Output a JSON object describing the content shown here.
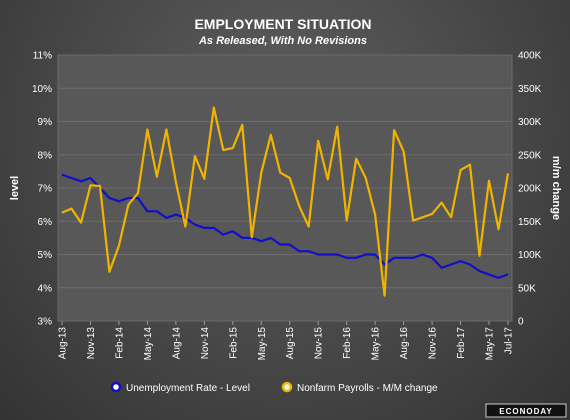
{
  "chart_data": {
    "type": "line",
    "title": "EMPLOYMENT SITUATION",
    "subtitle": "As Released, With No Revisions",
    "ylabel_left": "level",
    "ylabel_right": "m/m change",
    "ylim_left": [
      3,
      11
    ],
    "ylim_right": [
      0,
      400
    ],
    "yticks_left": [
      "3%",
      "4%",
      "5%",
      "6%",
      "7%",
      "8%",
      "9%",
      "10%",
      "11%"
    ],
    "yticks_right": [
      "0",
      "50K",
      "100K",
      "150K",
      "200K",
      "250K",
      "300K",
      "350K",
      "400K"
    ],
    "xticks": [
      "Aug-13",
      "Nov-13",
      "Feb-14",
      "May-14",
      "Aug-14",
      "Nov-14",
      "Feb-15",
      "May-15",
      "Aug-15",
      "Nov-15",
      "Feb-16",
      "May-16",
      "Aug-16",
      "Nov-16",
      "Feb-17",
      "May-17",
      "Jul-17"
    ],
    "x": [
      "Aug-13",
      "Sep-13",
      "Oct-13",
      "Nov-13",
      "Dec-13",
      "Jan-14",
      "Feb-14",
      "Mar-14",
      "Apr-14",
      "May-14",
      "Jun-14",
      "Jul-14",
      "Aug-14",
      "Sep-14",
      "Oct-14",
      "Nov-14",
      "Dec-14",
      "Jan-15",
      "Feb-15",
      "Mar-15",
      "Apr-15",
      "May-15",
      "Jun-15",
      "Jul-15",
      "Aug-15",
      "Sep-15",
      "Oct-15",
      "Nov-15",
      "Dec-15",
      "Jan-16",
      "Feb-16",
      "Mar-16",
      "Apr-16",
      "May-16",
      "Jun-16",
      "Jul-16",
      "Aug-16",
      "Sep-16",
      "Oct-16",
      "Nov-16",
      "Dec-16",
      "Jan-17",
      "Feb-17",
      "Mar-17",
      "Apr-17",
      "May-17",
      "Jun-17",
      "Jul-17"
    ],
    "series": [
      {
        "name": "Unemployment Rate - Level",
        "color": "#1010c8",
        "axis": "left",
        "values": [
          7.4,
          7.3,
          7.2,
          7.3,
          7.0,
          6.7,
          6.6,
          6.7,
          6.7,
          6.3,
          6.3,
          6.1,
          6.2,
          6.1,
          5.9,
          5.8,
          5.8,
          5.6,
          5.7,
          5.5,
          5.5,
          5.4,
          5.5,
          5.3,
          5.3,
          5.1,
          5.1,
          5.0,
          5.0,
          5.0,
          4.9,
          4.9,
          5.0,
          5.0,
          4.7,
          4.9,
          4.9,
          4.9,
          5.0,
          4.9,
          4.6,
          4.7,
          4.8,
          4.7,
          4.5,
          4.4,
          4.3,
          4.4
        ]
      },
      {
        "name": "Nonfarm Payrolls - M/M change",
        "color": "#f0b400",
        "axis": "right",
        "values": [
          163,
          169,
          148,
          204,
          203,
          74,
          113,
          175,
          192,
          288,
          217,
          288,
          209,
          142,
          248,
          214,
          321,
          257,
          260,
          295,
          126,
          223,
          280,
          223,
          215,
          173,
          142,
          271,
          213,
          292,
          151,
          244,
          215,
          160,
          38,
          287,
          255,
          151,
          156,
          161,
          178,
          156,
          227,
          235,
          98,
          211,
          138,
          222
        ]
      }
    ],
    "legend": [
      "Unemployment Rate - Level",
      "Nonfarm Payrolls - M/M change"
    ],
    "legend_position": "bottom",
    "grid": true
  },
  "brand": "ECONODAY"
}
